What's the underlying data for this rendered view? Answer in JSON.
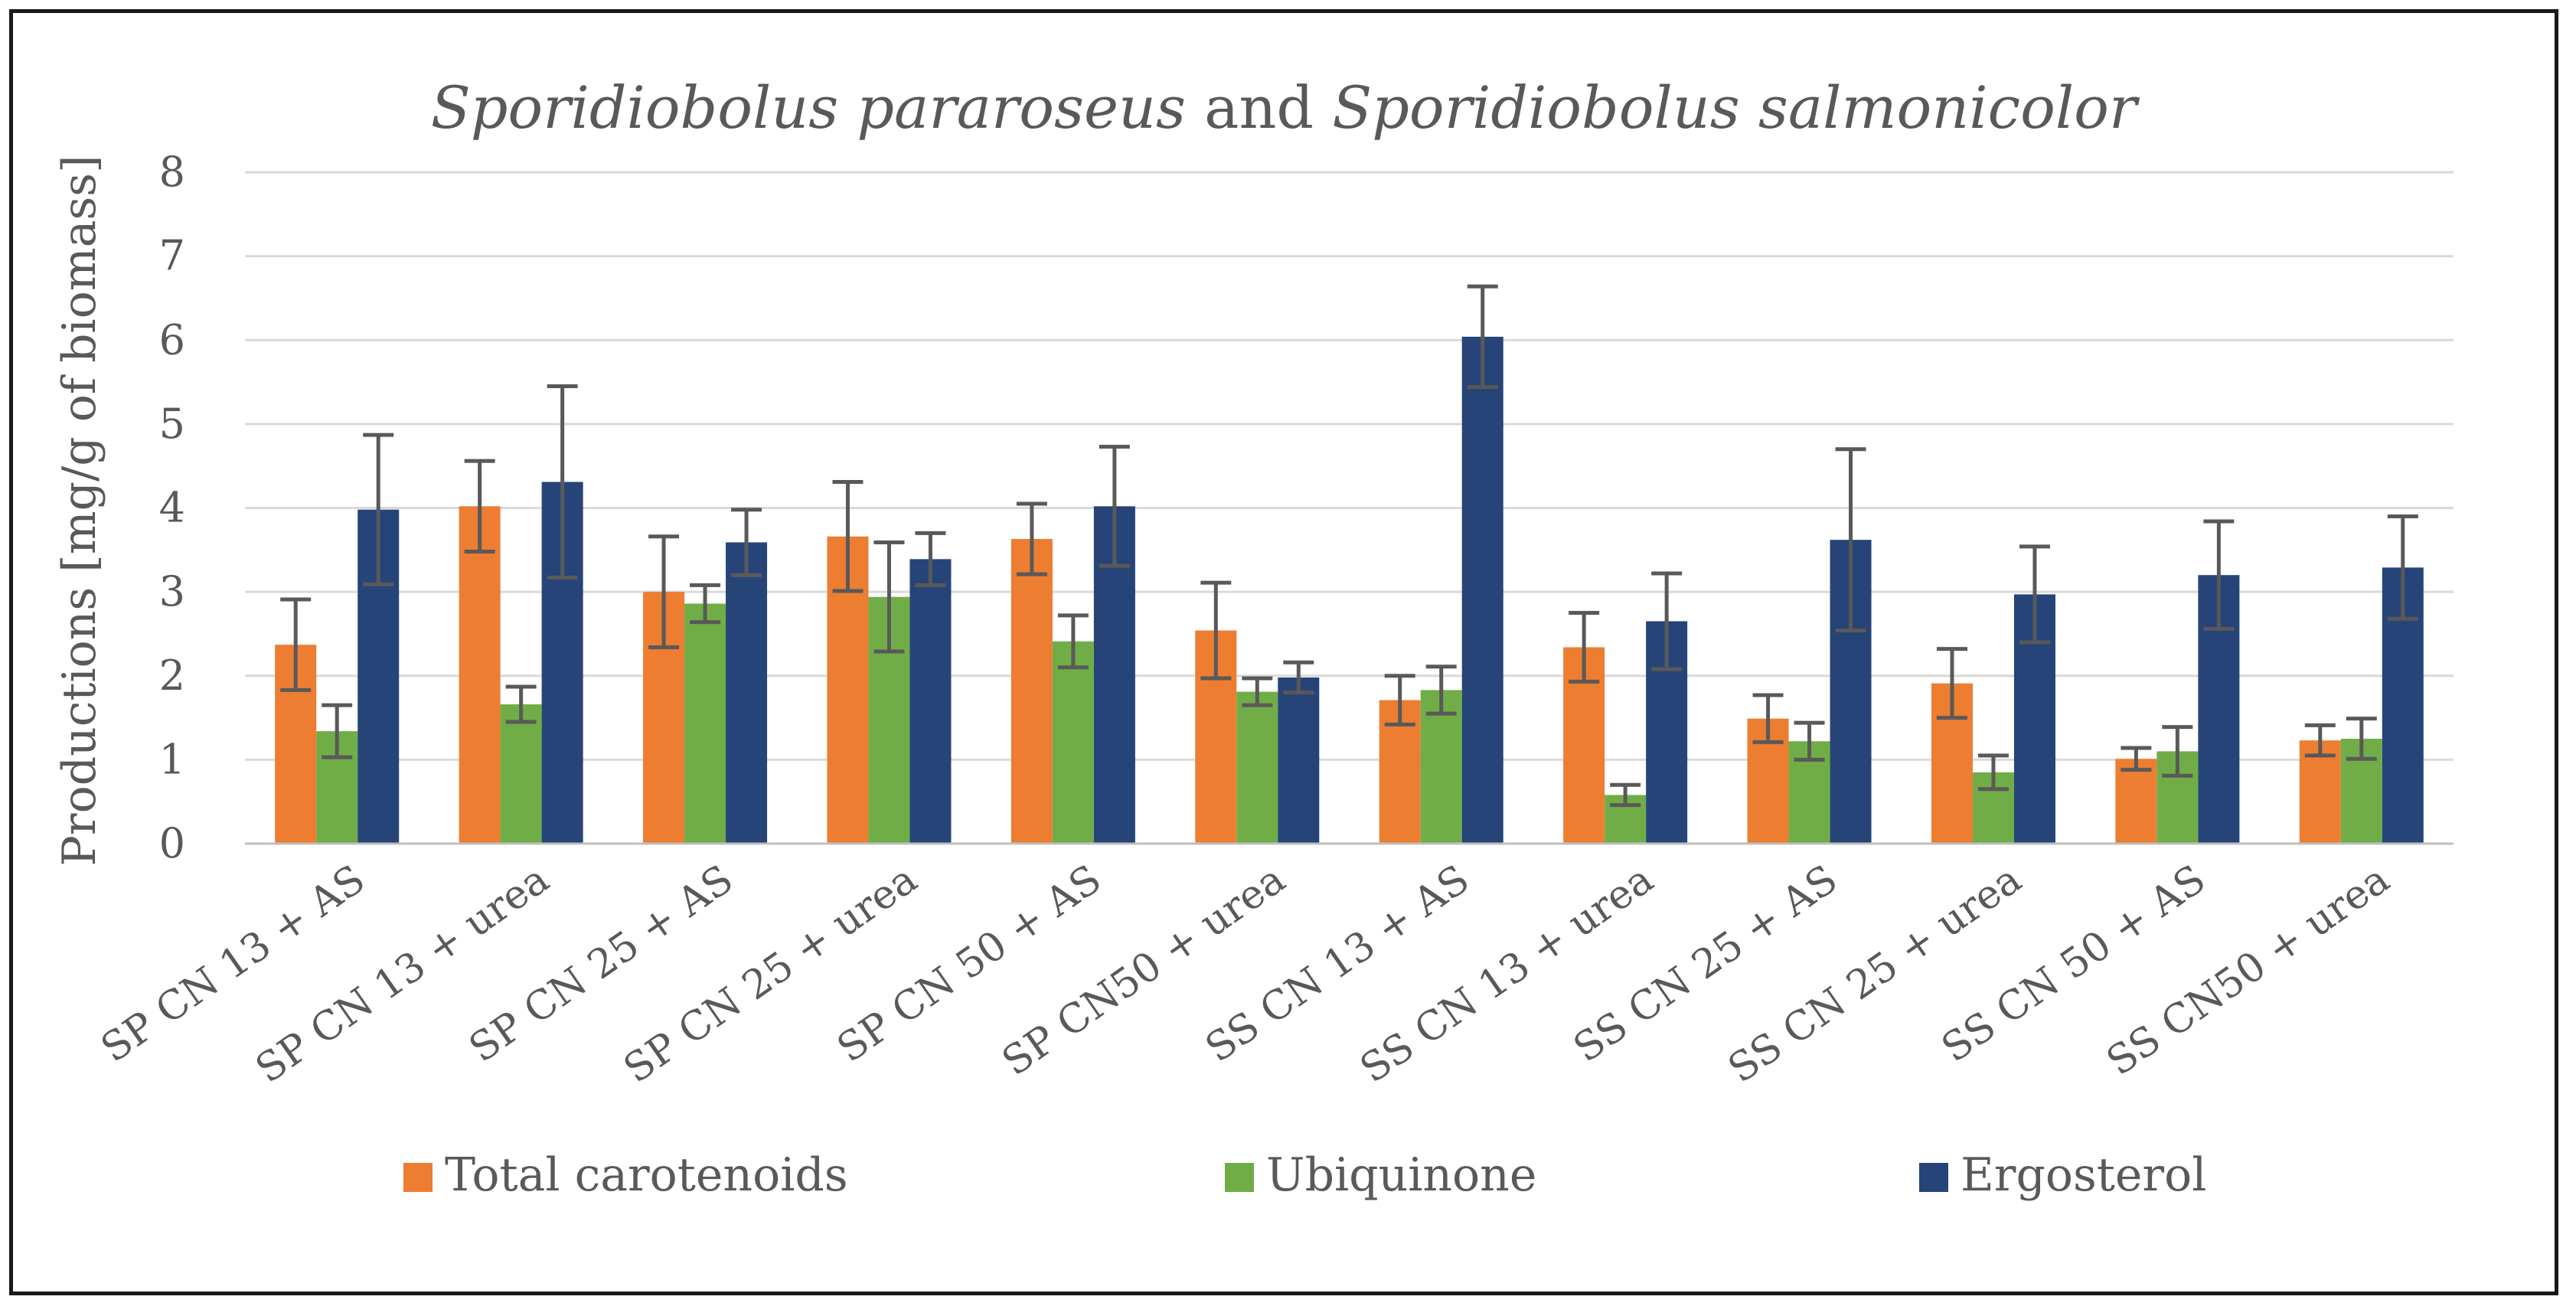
{
  "chart_data": {
    "type": "bar",
    "title": {
      "parts": [
        {
          "text": "Sporidiobolus pararoseus",
          "italic": true
        },
        {
          "text": " and ",
          "italic": false
        },
        {
          "text": "Sporidiobolus salmonicolor",
          "italic": true
        }
      ]
    },
    "xlabel": "",
    "ylabel": "Productions [mg/g of biomass]",
    "ylim": [
      0,
      8
    ],
    "yticks": [
      "0",
      "1",
      "2",
      "3",
      "4",
      "5",
      "6",
      "7",
      "8"
    ],
    "grid": true,
    "legend_position": "bottom",
    "categories": [
      "SP CN 13 + AS",
      "SP CN 13 + urea",
      "SP CN 25 + AS",
      "SP CN 25 + urea",
      "SP CN 50 + AS",
      "SP CN50 + urea",
      "SS CN 13 + AS",
      "SS CN 13 + urea",
      "SS CN 25 + AS",
      "SS CN 25 + urea",
      "SS CN 50 + AS",
      "SS CN50 + urea"
    ],
    "series": [
      {
        "name": "Total carotenoids",
        "color": "#ED7D31",
        "values": [
          2.37,
          4.02,
          3.0,
          3.66,
          3.63,
          2.54,
          1.71,
          2.34,
          1.49,
          1.91,
          1.01,
          1.23
        ],
        "errors": [
          0.54,
          0.54,
          0.66,
          0.65,
          0.42,
          0.57,
          0.29,
          0.41,
          0.28,
          0.41,
          0.13,
          0.18
        ]
      },
      {
        "name": "Ubiquinone",
        "color": "#70AD47",
        "values": [
          1.34,
          1.66,
          2.86,
          2.94,
          2.41,
          1.81,
          1.83,
          0.58,
          1.22,
          0.85,
          1.1,
          1.25
        ],
        "errors": [
          0.31,
          0.21,
          0.22,
          0.65,
          0.31,
          0.16,
          0.28,
          0.12,
          0.22,
          0.2,
          0.29,
          0.24
        ]
      },
      {
        "name": "Ergosterol",
        "color": "#264478",
        "values": [
          3.98,
          4.31,
          3.59,
          3.39,
          4.02,
          1.98,
          6.04,
          2.65,
          3.62,
          2.97,
          3.2,
          3.29
        ],
        "errors": [
          0.89,
          1.14,
          0.39,
          0.31,
          0.71,
          0.18,
          0.6,
          0.57,
          1.08,
          0.57,
          0.64,
          0.61
        ]
      }
    ]
  }
}
